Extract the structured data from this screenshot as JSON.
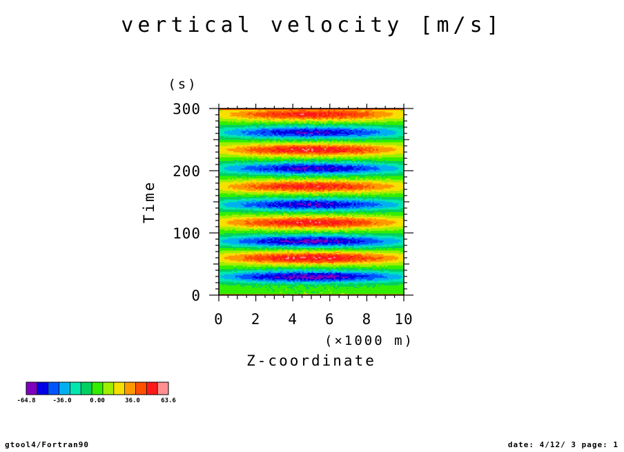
{
  "chart_data": {
    "type": "heatmap",
    "title": "vertical velocity [m/s]",
    "xlabel": "Z-coordinate",
    "x_unit": "(×1000 m)",
    "ylabel": "Time",
    "y_unit": "(s)",
    "xlim": [
      0,
      10
    ],
    "ylim": [
      0,
      300
    ],
    "x_ticks": [
      "0",
      "2",
      "4",
      "6",
      "8",
      "10"
    ],
    "x_tick_values": [
      0,
      2,
      4,
      6,
      8,
      10
    ],
    "y_ticks": [
      "0",
      "100",
      "200",
      "300"
    ],
    "y_tick_values": [
      0,
      100,
      200,
      300
    ],
    "bands": [
      {
        "t": 30,
        "amp": -60
      },
      {
        "t": 60,
        "amp": 55
      },
      {
        "t": 87,
        "amp": -58
      },
      {
        "t": 117,
        "amp": 52
      },
      {
        "t": 146,
        "amp": -55
      },
      {
        "t": 175,
        "amp": 50
      },
      {
        "t": 204,
        "amp": -55
      },
      {
        "t": 234,
        "amp": 52
      },
      {
        "t": 262,
        "amp": -54
      },
      {
        "t": 291,
        "amp": 50
      }
    ],
    "colorbar": {
      "colors": [
        "#7f00bf",
        "#0000e6",
        "#0055ff",
        "#00b0f0",
        "#00e6b0",
        "#00d060",
        "#33ee00",
        "#a0ee00",
        "#f5e000",
        "#ff9900",
        "#ff5000",
        "#ff1a1a",
        "#ff9090"
      ],
      "labels": [
        "-64.8",
        "-36.0",
        "0.00",
        "36.0",
        "63.6"
      ]
    }
  },
  "footer": {
    "left": "gtool4/Fortran90",
    "right": "date: 4/12/ 3 page: 1"
  }
}
